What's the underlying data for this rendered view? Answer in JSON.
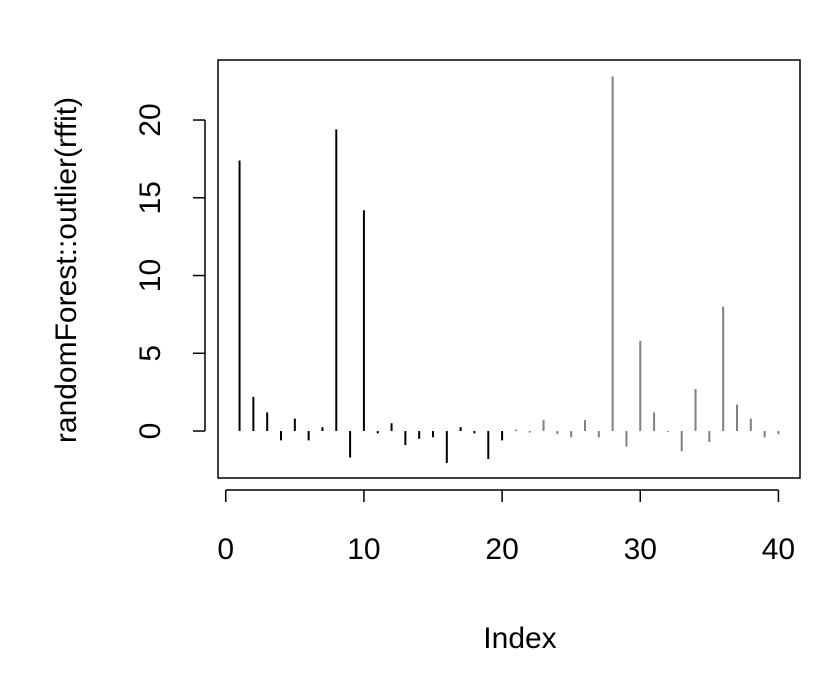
{
  "chart_data": {
    "type": "spike",
    "xlabel": "Index",
    "ylabel": "randomForest::outlier(rffit)",
    "x": [
      1,
      2,
      3,
      4,
      5,
      6,
      7,
      8,
      9,
      10,
      11,
      12,
      13,
      14,
      15,
      16,
      17,
      18,
      19,
      20,
      21,
      22,
      23,
      24,
      25,
      26,
      27,
      28,
      29,
      30,
      31,
      32,
      33,
      34,
      35,
      36,
      37,
      38,
      39,
      40
    ],
    "values": [
      17.4,
      2.2,
      1.2,
      -0.6,
      0.8,
      -0.6,
      0.25,
      19.4,
      -1.7,
      14.2,
      -0.15,
      0.5,
      -0.9,
      -0.5,
      -0.4,
      -2.05,
      0.25,
      -0.15,
      -1.8,
      -0.6,
      0.1,
      -0.1,
      0.7,
      -0.2,
      -0.4,
      0.7,
      -0.4,
      22.8,
      -1.0,
      5.8,
      1.2,
      -0.05,
      -1.3,
      2.7,
      -0.7,
      8.0,
      1.7,
      0.8,
      -0.4,
      -0.2
    ],
    "colors": [
      "#000000",
      "#000000",
      "#000000",
      "#000000",
      "#000000",
      "#000000",
      "#000000",
      "#000000",
      "#000000",
      "#000000",
      "#000000",
      "#000000",
      "#000000",
      "#000000",
      "#000000",
      "#000000",
      "#000000",
      "#000000",
      "#000000",
      "#000000",
      "#808080",
      "#808080",
      "#808080",
      "#808080",
      "#808080",
      "#808080",
      "#808080",
      "#808080",
      "#808080",
      "#808080",
      "#808080",
      "#808080",
      "#808080",
      "#808080",
      "#808080",
      "#808080",
      "#808080",
      "#808080",
      "#808080",
      "#808080"
    ],
    "xlim": [
      -0.56,
      41.56
    ],
    "ylim": [
      -3.02,
      23.86
    ],
    "xticks": [
      0,
      10,
      20,
      30,
      40
    ],
    "yticks": [
      0,
      5,
      10,
      15,
      20
    ]
  }
}
